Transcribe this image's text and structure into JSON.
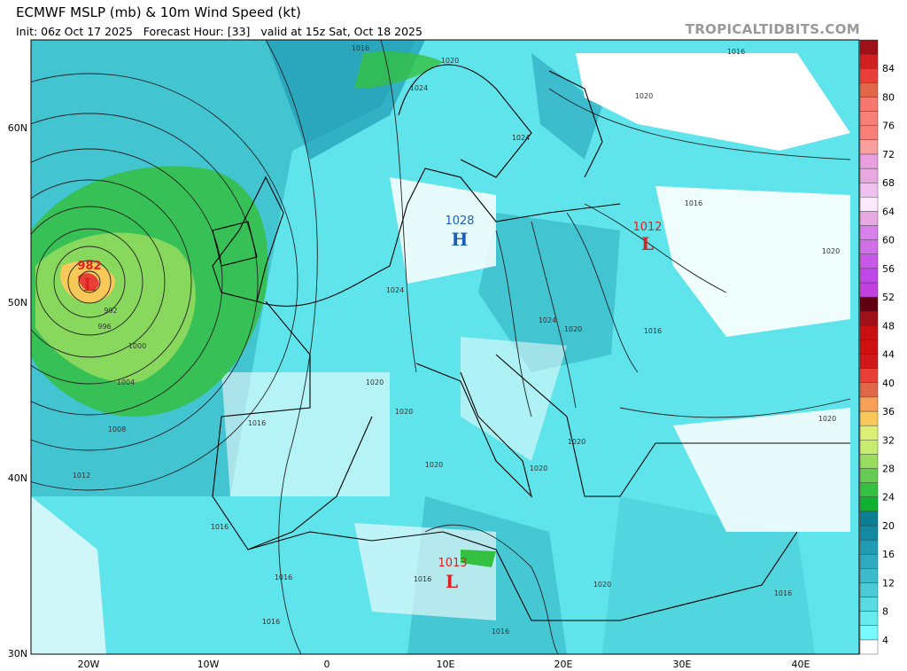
{
  "header": {
    "title": "ECMWF MSLP (mb) & 10m Wind Speed (kt)",
    "subtitle": "Init: 06z Oct 17 2025   Forecast Hour: [33]   valid at 15z Sat, Oct 18 2025",
    "brand": "TROPICALTIDBITS.COM"
  },
  "axes": {
    "lat_labels": [
      "60N",
      "50N",
      "40N",
      "30N"
    ],
    "lon_labels": [
      "20W",
      "10W",
      "0",
      "10E",
      "20E",
      "30E",
      "40E"
    ]
  },
  "pressure_centers": [
    {
      "type": "L",
      "value": "982",
      "color": "#e02020"
    },
    {
      "type": "H",
      "value": "1028",
      "color": "#1a5fb4"
    },
    {
      "type": "L",
      "value": "1012",
      "color": "#e02020"
    },
    {
      "type": "L",
      "value": "1013",
      "color": "#e02020"
    }
  ],
  "isobar_labels": [
    "1016",
    "1020",
    "1024",
    "1016",
    "1020",
    "1024",
    "1016",
    "1020",
    "1024",
    "1024",
    "1020",
    "1016",
    "992",
    "996",
    "1000",
    "1004",
    "1008",
    "1012",
    "1020",
    "1020",
    "1016",
    "1020",
    "1020",
    "1020",
    "1020",
    "1016",
    "1016",
    "1016",
    "1016",
    "1016",
    "1020",
    "1016"
  ],
  "colorbar": {
    "unit": "kt",
    "labels": [
      "4",
      "8",
      "12",
      "16",
      "20",
      "24",
      "28",
      "32",
      "36",
      "40",
      "44",
      "48",
      "52",
      "56",
      "60",
      "64",
      "68",
      "72",
      "76",
      "80",
      "84"
    ],
    "colors": [
      "#ffffff",
      "#78fbfc",
      "#66ebee",
      "#58dbe2",
      "#4acbd6",
      "#3cbbca",
      "#2eabbf",
      "#209bb3",
      "#148aa2",
      "#0c7e96",
      "#10b030",
      "#34c040",
      "#64cc50",
      "#98dc60",
      "#c8ec70",
      "#dcf078",
      "#f8c858",
      "#f8a058",
      "#e06848",
      "#e84038",
      "#d01818",
      "#d01010",
      "#c81010",
      "#a01018",
      "#600010",
      "#c040e0",
      "#c048e8",
      "#c858e8",
      "#d070e8",
      "#d880ec",
      "#e8a8e0",
      "#fce8fc",
      "#f0c0f0",
      "#e8a8e0",
      "#e8a0e0",
      "#f8a0a0",
      "#f88078",
      "#f88078",
      "#f87870",
      "#e06848",
      "#e84038",
      "#d02020",
      "#a01018"
    ]
  }
}
